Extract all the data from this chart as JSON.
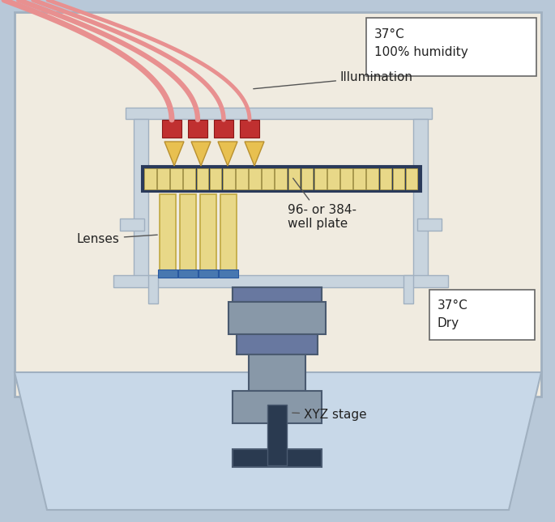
{
  "bg_outer": "#b8c8d8",
  "bg_inner": "#f0ebe0",
  "bg_stage_lower": "#c8d8e8",
  "frame_color": "#a0b0c0",
  "frame_mid": "#8898a8",
  "frame_light": "#c8d4de",
  "well_plate_color": "#e8d888",
  "well_plate_border": "#2a3a5a",
  "lens_color": "#e8d888",
  "lens_border": "#c0a840",
  "red_block": "#c03030",
  "red_dark": "#8a1818",
  "illumination_tube": "#e89090",
  "triangle_color": "#e8c050",
  "triangle_edge": "#b89030",
  "blue_base": "#4878b0",
  "blue_base_dark": "#2858a0",
  "mic_lightest": "#b0c0d0",
  "mic_light": "#8898a8",
  "mic_mid": "#6878a0",
  "mic_dark": "#4a5a70",
  "mic_darkest": "#2a3a50",
  "label_color": "#222222",
  "box_bg": "#ffffff",
  "box_edge": "#666666",
  "label_illumination": "Illumination",
  "label_lenses": "Lenses",
  "label_well_plate": "96- or 384-\nwell plate",
  "label_xyz": "XYZ stage",
  "label_temp1": "37°C\n100% humidity",
  "label_temp2": "37°C\nDry"
}
